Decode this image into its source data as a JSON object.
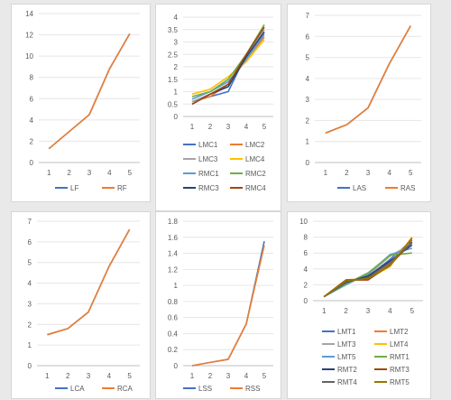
{
  "chart_data": [
    {
      "type": "line",
      "categories": [
        "1",
        "2",
        "3",
        "4",
        "5"
      ],
      "ylim": [
        0,
        14
      ],
      "yticks": [
        "0",
        "2",
        "4",
        "6",
        "8",
        "10",
        "12",
        "14"
      ],
      "series": [
        {
          "name": "LF",
          "color": "#4472c4",
          "values": [
            1.3,
            2.9,
            4.5,
            8.8,
            12.1
          ]
        },
        {
          "name": "RF",
          "color": "#ed7d31",
          "values": [
            1.3,
            2.9,
            4.5,
            8.8,
            12.1
          ]
        }
      ]
    },
    {
      "type": "line",
      "categories": [
        "1",
        "2",
        "3",
        "4",
        "5"
      ],
      "ylim": [
        0,
        4
      ],
      "yticks": [
        "0",
        "0.5",
        "1",
        "1.5",
        "2",
        "2.5",
        "3",
        "3.5",
        "4"
      ],
      "series": [
        {
          "name": "LMC1",
          "color": "#4472c4",
          "values": [
            0.6,
            0.8,
            1.0,
            2.5,
            3.4
          ]
        },
        {
          "name": "LMC2",
          "color": "#ed7d31",
          "values": [
            0.6,
            0.8,
            1.3,
            2.3,
            3.2
          ]
        },
        {
          "name": "LMC3",
          "color": "#a5a5a5",
          "values": [
            0.6,
            0.9,
            1.2,
            2.4,
            3.5
          ]
        },
        {
          "name": "LMC4",
          "color": "#ffc000",
          "values": [
            0.9,
            1.1,
            1.6,
            2.2,
            3.1
          ]
        },
        {
          "name": "RMC1",
          "color": "#5b9bd5",
          "values": [
            0.7,
            1.0,
            1.4,
            2.3,
            3.3
          ]
        },
        {
          "name": "RMC2",
          "color": "#70ad47",
          "values": [
            0.8,
            1.0,
            1.5,
            2.5,
            3.7
          ]
        },
        {
          "name": "RMC3",
          "color": "#264478",
          "values": [
            0.5,
            0.9,
            1.2,
            2.4,
            3.4
          ]
        },
        {
          "name": "RMC4",
          "color": "#9e480e",
          "values": [
            0.5,
            0.9,
            1.3,
            2.5,
            3.6
          ]
        }
      ]
    },
    {
      "type": "line",
      "categories": [
        "1",
        "2",
        "3",
        "4",
        "5"
      ],
      "ylim": [
        0,
        7
      ],
      "yticks": [
        "0",
        "1",
        "2",
        "3",
        "4",
        "5",
        "6",
        "7"
      ],
      "series": [
        {
          "name": "LAS",
          "color": "#4472c4",
          "values": [
            1.4,
            1.8,
            2.6,
            4.7,
            6.5
          ]
        },
        {
          "name": "RAS",
          "color": "#ed7d31",
          "values": [
            1.4,
            1.8,
            2.6,
            4.7,
            6.5
          ]
        }
      ]
    },
    {
      "type": "line",
      "categories": [
        "1",
        "2",
        "3",
        "4",
        "5"
      ],
      "ylim": [
        0,
        7
      ],
      "yticks": [
        "0",
        "1",
        "2",
        "3",
        "4",
        "5",
        "6",
        "7"
      ],
      "series": [
        {
          "name": "LCA",
          "color": "#4472c4",
          "values": [
            1.5,
            1.8,
            2.6,
            4.8,
            6.6
          ]
        },
        {
          "name": "RCA",
          "color": "#ed7d31",
          "values": [
            1.5,
            1.8,
            2.6,
            4.8,
            6.6
          ]
        }
      ]
    },
    {
      "type": "line",
      "categories": [
        "1",
        "2",
        "3",
        "4",
        "5"
      ],
      "ylim": [
        0,
        1.8
      ],
      "yticks": [
        "0",
        "0.2",
        "0.4",
        "0.6",
        "0.8",
        "1",
        "1.2",
        "1.4",
        "1.6",
        "1.8"
      ],
      "series": [
        {
          "name": "LSS",
          "color": "#4472c4",
          "values": [
            0.0,
            0.04,
            0.08,
            0.52,
            1.55
          ]
        },
        {
          "name": "RSS",
          "color": "#ed7d31",
          "values": [
            0.0,
            0.04,
            0.08,
            0.52,
            1.5
          ]
        }
      ]
    },
    {
      "type": "line",
      "categories": [
        "1",
        "2",
        "3",
        "4",
        "5"
      ],
      "ylim": [
        0,
        10
      ],
      "yticks": [
        "0",
        "2",
        "4",
        "6",
        "8",
        "10"
      ],
      "series": [
        {
          "name": "LMT1",
          "color": "#4472c4",
          "values": [
            0.5,
            2.4,
            3.0,
            5.2,
            7.6
          ]
        },
        {
          "name": "LMT2",
          "color": "#ed7d31",
          "values": [
            0.5,
            2.6,
            2.8,
            4.6,
            7.8
          ]
        },
        {
          "name": "LMT3",
          "color": "#a5a5a5",
          "values": [
            0.5,
            2.2,
            3.2,
            5.6,
            7.2
          ]
        },
        {
          "name": "LMT4",
          "color": "#ffc000",
          "values": [
            0.5,
            2.5,
            2.7,
            4.3,
            8.0
          ]
        },
        {
          "name": "LMT5",
          "color": "#5b9bd5",
          "values": [
            0.5,
            2.0,
            3.4,
            5.8,
            6.6
          ]
        },
        {
          "name": "RMT1",
          "color": "#70ad47",
          "values": [
            0.5,
            2.1,
            3.5,
            5.7,
            6.0
          ]
        },
        {
          "name": "RMT2",
          "color": "#264478",
          "values": [
            0.5,
            2.3,
            3.1,
            5.0,
            7.0
          ]
        },
        {
          "name": "RMT3",
          "color": "#9e480e",
          "values": [
            0.5,
            2.6,
            2.6,
            4.5,
            7.4
          ]
        },
        {
          "name": "RMT4",
          "color": "#636363",
          "values": [
            0.5,
            2.4,
            2.9,
            4.8,
            7.3
          ]
        },
        {
          "name": "RMT5",
          "color": "#997300",
          "values": [
            0.5,
            2.5,
            2.8,
            4.4,
            7.9
          ]
        }
      ]
    }
  ]
}
